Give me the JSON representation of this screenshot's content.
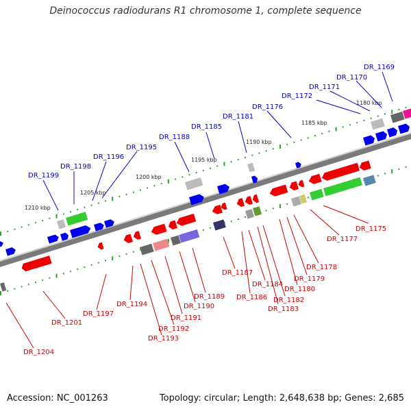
{
  "title": "Deinococcus radiodurans R1 chromosome 1, complete sequence",
  "footer": {
    "accession": "Accession: NC_001263",
    "summary": "Topology: circular; Length: 2,648,638 bp; Genes: 2,685"
  },
  "colors": {
    "forward_label": "#0000cc",
    "reverse_label": "#cc0000",
    "backbone": "#7a7a7a",
    "tick": "#22aa22",
    "forward_gene": "#0000ee",
    "reverse_gene": "#ee0000"
  },
  "scale_labels": [
    "1180 kbp",
    "1185 kbp",
    "1190 kbp",
    "1195 kbp",
    "1200 kbp",
    "1205 kbp",
    "1210 kbp"
  ],
  "forward_genes": [
    "DR_1169",
    "DR_1170",
    "DR_1171",
    "DR_1172",
    "DR_1176",
    "DR_1181",
    "DR_1185",
    "DR_1188",
    "DR_1195",
    "DR_1196",
    "DR_1198",
    "DR_1199"
  ],
  "reverse_genes": [
    "DR_1175",
    "DR_1177",
    "DR_1178",
    "DR_1179",
    "DR_1180",
    "DR_1182",
    "DR_1183",
    "DR_1184",
    "DR_1186",
    "DR_1187",
    "DR_1189",
    "DR_1190",
    "DR_1191",
    "DR_1192",
    "DR_1193",
    "DR_1194",
    "DR_1197",
    "DR_1201",
    "DR_1204"
  ]
}
